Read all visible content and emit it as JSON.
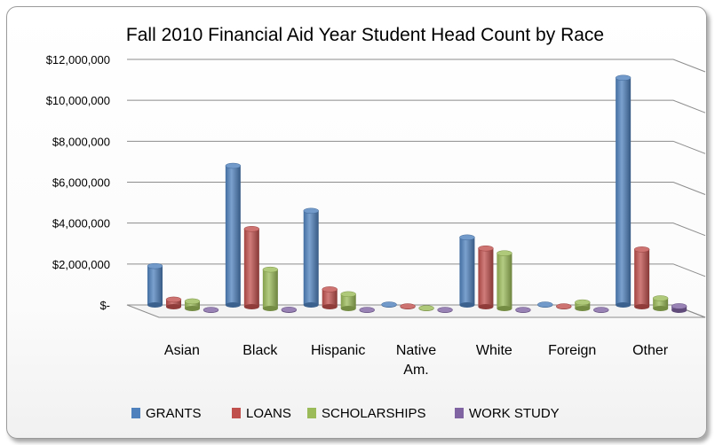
{
  "chart_data": {
    "type": "bar",
    "title": "Fall 2010 Financial Aid Year Student Head Count by Race",
    "categories": [
      [
        "Asian"
      ],
      [
        "Black"
      ],
      [
        "Hispanic"
      ],
      [
        "Native",
        "Am."
      ],
      [
        "White"
      ],
      [
        "Foreign"
      ],
      [
        "Other"
      ]
    ],
    "y_ticks": [
      "$-",
      "$2,000,000",
      "$4,000,000",
      "$6,000,000",
      "$8,000,000",
      "$10,000,000",
      "$12,000,000"
    ],
    "ylim": [
      0,
      12000000
    ],
    "grid": true,
    "legend_position": "bottom",
    "series": [
      {
        "name": "GRANTS",
        "color": "#4F81BD",
        "values": [
          1900000,
          6800000,
          4600000,
          20000,
          3300000,
          20000,
          11100000
        ]
      },
      {
        "name": "LOANS",
        "color": "#C0504D",
        "values": [
          350000,
          3800000,
          850000,
          20000,
          2850000,
          20000,
          2800000
        ]
      },
      {
        "name": "SCHOLARSHIPS",
        "color": "#9BBB59",
        "values": [
          350000,
          1900000,
          700000,
          20000,
          2700000,
          300000,
          500000
        ]
      },
      {
        "name": "WORK  STUDY",
        "color": "#8064A2",
        "values": [
          20000,
          30000,
          20000,
          20000,
          20000,
          20000,
          200000
        ]
      }
    ]
  }
}
